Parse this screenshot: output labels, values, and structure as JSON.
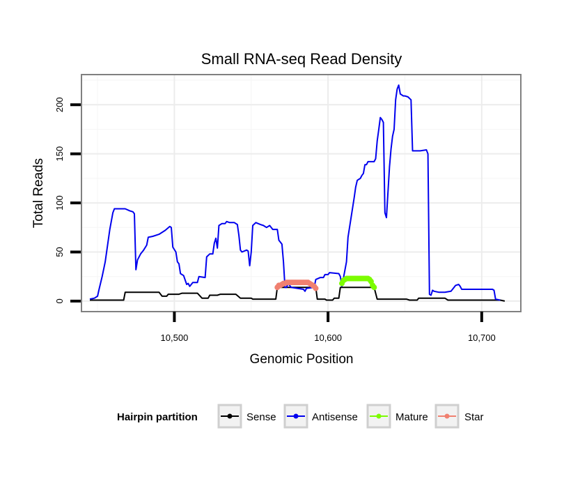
{
  "chart_data": {
    "type": "line",
    "title": "Small RNA-seq Read Density",
    "xlabel": "Genomic Position",
    "ylabel": "Total Reads",
    "xlim": [
      10440,
      10725
    ],
    "ylim": [
      -10,
      230
    ],
    "xticks": [
      10500,
      10600,
      10700
    ],
    "xtick_labels": [
      "10,500",
      "10,600",
      "10,700"
    ],
    "yticks": [
      0,
      50,
      100,
      150,
      200
    ],
    "ytick_labels": [
      "0",
      "50",
      "100",
      "150",
      "200"
    ],
    "grid": true,
    "legend": {
      "title": "Hairpin partition",
      "position": "bottom",
      "entries": [
        "Sense",
        "Antisense",
        "Mature",
        "Star"
      ]
    },
    "series": [
      {
        "name": "Sense",
        "color": "#000000",
        "style": "line",
        "points": [
          [
            10445,
            1
          ],
          [
            10467,
            1
          ],
          [
            10468,
            9
          ],
          [
            10490,
            9
          ],
          [
            10492,
            5
          ],
          [
            10495,
            5
          ],
          [
            10496,
            7
          ],
          [
            10503,
            7
          ],
          [
            10505,
            8
          ],
          [
            10515,
            8
          ],
          [
            10518,
            3
          ],
          [
            10522,
            3
          ],
          [
            10523,
            6
          ],
          [
            10528,
            6
          ],
          [
            10530,
            7
          ],
          [
            10540,
            7
          ],
          [
            10543,
            3
          ],
          [
            10550,
            3
          ],
          [
            10551,
            2
          ],
          [
            10566,
            2
          ],
          [
            10567,
            14
          ],
          [
            10570,
            14
          ],
          [
            10592,
            14
          ],
          [
            10593,
            2
          ],
          [
            10598,
            2
          ],
          [
            10599,
            1
          ],
          [
            10603,
            1
          ],
          [
            10604,
            3
          ],
          [
            10607,
            3
          ],
          [
            10608,
            14
          ],
          [
            10630,
            14
          ],
          [
            10632,
            2
          ],
          [
            10651,
            2
          ],
          [
            10653,
            1
          ],
          [
            10658,
            1
          ],
          [
            10659,
            3
          ],
          [
            10676,
            3
          ],
          [
            10678,
            1
          ],
          [
            10712,
            1
          ],
          [
            10715,
            0
          ]
        ]
      },
      {
        "name": "Antisense",
        "color": "#0000ee",
        "style": "line",
        "points": [
          [
            10445,
            2
          ],
          [
            10448,
            3
          ],
          [
            10450,
            5
          ],
          [
            10451,
            12
          ],
          [
            10453,
            25
          ],
          [
            10455,
            40
          ],
          [
            10457,
            62
          ],
          [
            10458,
            73
          ],
          [
            10460,
            90
          ],
          [
            10461,
            94
          ],
          [
            10468,
            94
          ],
          [
            10471,
            92
          ],
          [
            10473,
            91
          ],
          [
            10474,
            89
          ],
          [
            10475,
            32
          ],
          [
            10476,
            42
          ],
          [
            10478,
            48
          ],
          [
            10480,
            52
          ],
          [
            10482,
            57
          ],
          [
            10483,
            65
          ],
          [
            10486,
            66
          ],
          [
            10490,
            68
          ],
          [
            10494,
            72
          ],
          [
            10497,
            76
          ],
          [
            10498,
            75
          ],
          [
            10499,
            55
          ],
          [
            10501,
            50
          ],
          [
            10502,
            40
          ],
          [
            10503,
            38
          ],
          [
            10504,
            28
          ],
          [
            10506,
            26
          ],
          [
            10508,
            17
          ],
          [
            10509,
            18
          ],
          [
            10510,
            15
          ],
          [
            10512,
            19
          ],
          [
            10515,
            19
          ],
          [
            10516,
            25
          ],
          [
            10520,
            24
          ],
          [
            10521,
            45
          ],
          [
            10523,
            48
          ],
          [
            10525,
            48
          ],
          [
            10526,
            59
          ],
          [
            10527,
            64
          ],
          [
            10528,
            54
          ],
          [
            10529,
            77
          ],
          [
            10531,
            79
          ],
          [
            10533,
            79
          ],
          [
            10534,
            81
          ],
          [
            10536,
            80
          ],
          [
            10539,
            80
          ],
          [
            10541,
            78
          ],
          [
            10542,
            67
          ],
          [
            10543,
            52
          ],
          [
            10544,
            50
          ],
          [
            10547,
            52
          ],
          [
            10548,
            51
          ],
          [
            10549,
            36
          ],
          [
            10550,
            50
          ],
          [
            10551,
            77
          ],
          [
            10553,
            80
          ],
          [
            10556,
            78
          ],
          [
            10558,
            77
          ],
          [
            10560,
            75
          ],
          [
            10562,
            77
          ],
          [
            10564,
            73
          ],
          [
            10567,
            73
          ],
          [
            10568,
            62
          ],
          [
            10569,
            60
          ],
          [
            10570,
            58
          ],
          [
            10571,
            40
          ],
          [
            10572,
            14
          ],
          [
            10573,
            14
          ],
          [
            10574,
            18
          ],
          [
            10576,
            14
          ],
          [
            10580,
            13
          ],
          [
            10584,
            12
          ],
          [
            10585,
            10
          ],
          [
            10586,
            13
          ],
          [
            10591,
            14
          ],
          [
            10592,
            22
          ],
          [
            10595,
            24
          ],
          [
            10597,
            24
          ],
          [
            10598,
            27
          ],
          [
            10600,
            27
          ],
          [
            10601,
            29
          ],
          [
            10607,
            28
          ],
          [
            10608,
            25
          ],
          [
            10609,
            15
          ],
          [
            10612,
            40
          ],
          [
            10613,
            65
          ],
          [
            10615,
            85
          ],
          [
            10617,
            105
          ],
          [
            10618,
            116
          ],
          [
            10619,
            123
          ],
          [
            10621,
            125
          ],
          [
            10622,
            128
          ],
          [
            10623,
            130
          ],
          [
            10624,
            139
          ],
          [
            10625,
            139
          ],
          [
            10626,
            142
          ],
          [
            10630,
            142
          ],
          [
            10631,
            145
          ],
          [
            10632,
            163
          ],
          [
            10633,
            175
          ],
          [
            10634,
            187
          ],
          [
            10635,
            185
          ],
          [
            10636,
            182
          ],
          [
            10637,
            90
          ],
          [
            10638,
            85
          ],
          [
            10640,
            137
          ],
          [
            10641,
            155
          ],
          [
            10642,
            168
          ],
          [
            10643,
            175
          ],
          [
            10644,
            205
          ],
          [
            10645,
            216
          ],
          [
            10646,
            220
          ],
          [
            10647,
            211
          ],
          [
            10649,
            209
          ],
          [
            10650,
            209
          ],
          [
            10652,
            208
          ],
          [
            10654,
            205
          ],
          [
            10655,
            153
          ],
          [
            10660,
            153
          ],
          [
            10664,
            154
          ],
          [
            10665,
            150
          ],
          [
            10666,
            7
          ],
          [
            10667,
            6
          ],
          [
            10668,
            11
          ],
          [
            10669,
            10
          ],
          [
            10672,
            9
          ],
          [
            10676,
            9
          ],
          [
            10680,
            10
          ],
          [
            10682,
            14
          ],
          [
            10683,
            16
          ],
          [
            10685,
            17
          ],
          [
            10686,
            15
          ],
          [
            10687,
            12
          ],
          [
            10692,
            12
          ],
          [
            10700,
            12
          ],
          [
            10707,
            12
          ],
          [
            10708,
            11
          ],
          [
            10709,
            2
          ],
          [
            10712,
            1
          ]
        ]
      },
      {
        "name": "Mature",
        "color": "#7cfc00",
        "style": "points",
        "points": [
          [
            10609,
            18
          ],
          [
            10610,
            21
          ],
          [
            10611,
            22
          ],
          [
            10612,
            23
          ],
          [
            10613,
            23
          ],
          [
            10614,
            23
          ],
          [
            10615,
            23
          ],
          [
            10616,
            23
          ],
          [
            10617,
            23
          ],
          [
            10618,
            23
          ],
          [
            10619,
            23
          ],
          [
            10620,
            23
          ],
          [
            10621,
            23
          ],
          [
            10622,
            23
          ],
          [
            10623,
            23
          ],
          [
            10624,
            23
          ],
          [
            10625,
            23
          ],
          [
            10626,
            23
          ],
          [
            10627,
            22
          ],
          [
            10628,
            20
          ],
          [
            10629,
            16
          ],
          [
            10630,
            14
          ]
        ]
      },
      {
        "name": "Star",
        "color": "#f08070",
        "style": "points",
        "points": [
          [
            10567,
            14
          ],
          [
            10568,
            16
          ],
          [
            10569,
            16
          ],
          [
            10570,
            17
          ],
          [
            10571,
            18
          ],
          [
            10572,
            18
          ],
          [
            10573,
            19
          ],
          [
            10574,
            19
          ],
          [
            10575,
            19
          ],
          [
            10576,
            19
          ],
          [
            10577,
            19
          ],
          [
            10578,
            19
          ],
          [
            10579,
            19
          ],
          [
            10580,
            19
          ],
          [
            10581,
            19
          ],
          [
            10582,
            19
          ],
          [
            10583,
            19
          ],
          [
            10584,
            19
          ],
          [
            10585,
            19
          ],
          [
            10586,
            19
          ],
          [
            10587,
            19
          ],
          [
            10588,
            18
          ],
          [
            10589,
            17
          ],
          [
            10590,
            16
          ],
          [
            10591,
            15
          ],
          [
            10592,
            13
          ]
        ]
      }
    ]
  }
}
